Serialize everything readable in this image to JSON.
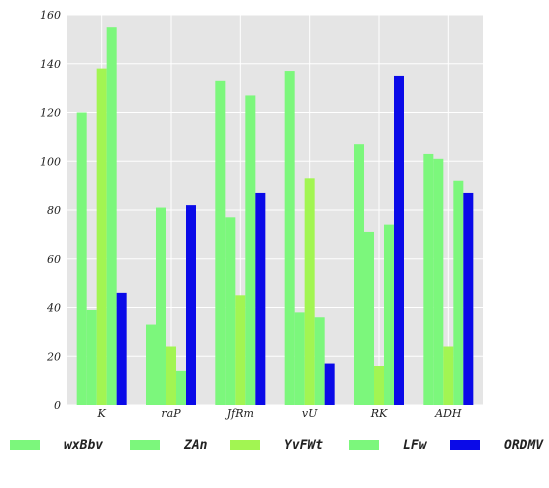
{
  "chart_data": {
    "type": "bar",
    "categories": [
      "K",
      "raP",
      "JfRm",
      "vU",
      "RK",
      "ADH"
    ],
    "series": [
      {
        "name": "wxBbv",
        "color": "#7cf77c",
        "values": [
          120,
          33,
          133,
          137,
          107,
          103
        ]
      },
      {
        "name": "ZAn",
        "color": "#7cf77c",
        "values": [
          39,
          81,
          77,
          38,
          71,
          101
        ]
      },
      {
        "name": "YvFWt",
        "color": "#a2f552",
        "values": [
          138,
          24,
          45,
          93,
          16,
          24
        ]
      },
      {
        "name": "LFw",
        "color": "#7cf77c",
        "values": [
          155,
          14,
          127,
          36,
          74,
          92
        ]
      },
      {
        "name": "ORDMV",
        "color": "#0a0ae8",
        "values": [
          46,
          82,
          87,
          17,
          135,
          87
        ]
      }
    ],
    "title": "",
    "xlabel": "",
    "ylabel": "",
    "ylim": [
      0,
      160
    ],
    "yticks": [
      0,
      20,
      40,
      60,
      80,
      100,
      120,
      140,
      160
    ],
    "grid": true,
    "background": "#e5e5e5",
    "legend_position": "bottom"
  }
}
